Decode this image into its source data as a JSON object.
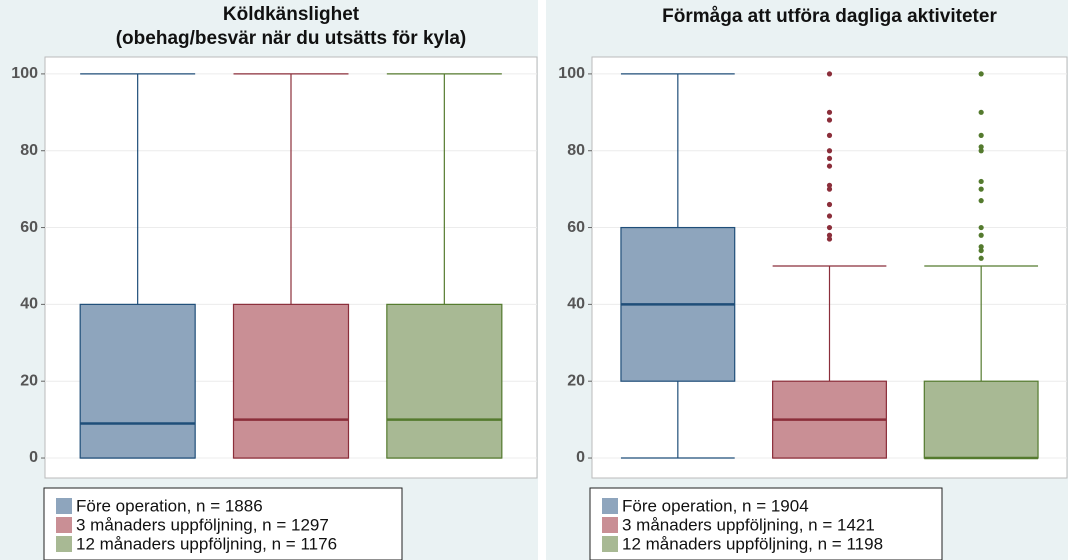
{
  "chart_data": [
    {
      "type": "box",
      "title": [
        "Köldkänslighet",
        "(obehag/besvär när du utsätts för kyla)"
      ],
      "ylim": [
        -5.2,
        104.4
      ],
      "yticks": [
        0,
        20,
        40,
        60,
        80,
        100
      ],
      "grid": true,
      "series": [
        {
          "name": "Före operation, n = 1886",
          "color": "#8ea5bd",
          "edge": "#1f4e79",
          "min": 0,
          "q1": 0,
          "median": 9,
          "q3": 40,
          "max": 100,
          "outliers": []
        },
        {
          "name": "3 månaders uppföljning, n = 1297",
          "color": "#c98f95",
          "edge": "#8b2e3a",
          "min": 0,
          "q1": 0,
          "median": 10,
          "q3": 40,
          "max": 100,
          "outliers": []
        },
        {
          "name": "12 månaders uppföljning, n = 1176",
          "color": "#a8b994",
          "edge": "#547a2e",
          "min": 0,
          "q1": 0,
          "median": 10,
          "q3": 40,
          "max": 100,
          "outliers": []
        }
      ]
    },
    {
      "type": "box",
      "title": [
        "Förmåga att utföra dagliga aktiviteter"
      ],
      "ylim": [
        -5.2,
        104.4
      ],
      "yticks": [
        0,
        20,
        40,
        60,
        80,
        100
      ],
      "grid": true,
      "series": [
        {
          "name": "Före operation, n = 1904",
          "color": "#8ea5bd",
          "edge": "#1f4e79",
          "min": 0,
          "q1": 20,
          "median": 40,
          "q3": 60,
          "max": 100,
          "outliers": []
        },
        {
          "name": "3 månaders uppföljning, n = 1421",
          "color": "#c98f95",
          "edge": "#8b2e3a",
          "min": 0,
          "q1": 0,
          "median": 10,
          "q3": 20,
          "max": 50,
          "outliers": [
            100,
            90,
            88,
            84,
            80,
            78,
            76,
            71,
            70,
            66,
            63,
            60,
            58,
            57
          ]
        },
        {
          "name": "12 månaders uppföljning, n = 1198",
          "color": "#a8b994",
          "edge": "#547a2e",
          "min": 0,
          "q1": 0,
          "median": 0,
          "q3": 20,
          "max": 50,
          "outliers": [
            100,
            90,
            84,
            81,
            80,
            72,
            70,
            67,
            60,
            58,
            55,
            54,
            52
          ]
        }
      ]
    }
  ]
}
